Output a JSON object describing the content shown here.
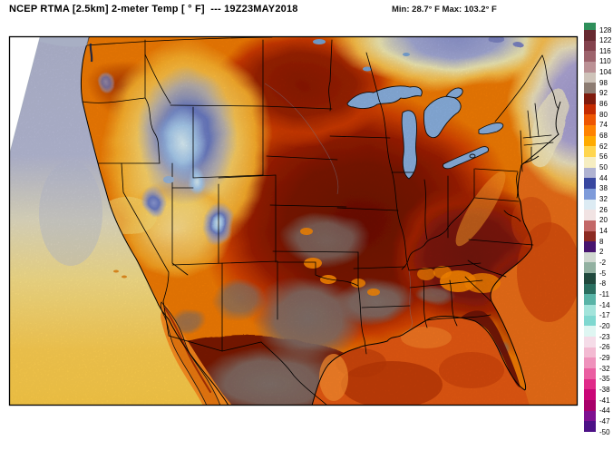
{
  "page": {
    "background": "#ffffff"
  },
  "header": {
    "title": "NCEP RTMA [2.5km] 2-meter Temp [ ° F]  --- 19Z23MAY2018",
    "stats": "Min: 28.7° F Max: 103.2° F"
  },
  "colorbar": {
    "unit": "°F",
    "cap_color": "#2e8f5a",
    "labels": [
      128,
      122,
      116,
      110,
      104,
      98,
      92,
      86,
      80,
      74,
      68,
      62,
      56,
      50,
      44,
      38,
      32,
      26,
      20,
      14,
      8,
      2,
      -2,
      -5,
      -8,
      -11,
      -14,
      -17,
      -20,
      -23,
      -26,
      -29,
      -32,
      -35,
      -38,
      -41,
      -44,
      -47,
      -50
    ],
    "segment_colors": [
      "#672a31",
      "#84424d",
      "#9d636c",
      "#bb9195",
      "#cec3b9",
      "#8d7c72",
      "#7f1b0d",
      "#c42b01",
      "#ee5602",
      "#ff8300",
      "#ffab00",
      "#ffd64f",
      "#f6eec2",
      "#b0b3d2",
      "#3847a0",
      "#7e9bda",
      "#dcebf3",
      "#f1e3e3",
      "#c36868",
      "#8c2a22",
      "#48156f",
      "#d0d8d0",
      "#92b1a1",
      "#20493d",
      "#2a6f60",
      "#58b4a7",
      "#a2e4db",
      "#7fd8d0",
      "#dff6f2",
      "#f5dce8",
      "#f3bad2",
      "#ef92bc",
      "#ea5ea1",
      "#e02a89",
      "#ca0677",
      "#a8006a",
      "#7e1090",
      "#4c1186"
    ]
  },
  "map": {
    "palette": {
      "base_warm": "#f57d04",
      "hot_core": "#7a1305",
      "very_hot_gray": "#837169",
      "cool_pacific": "#b6bad5",
      "cold_mountain_blue": "#5a6cbe",
      "lake_blue": "#8cb2e2",
      "gulf_orange": "#e85a12",
      "atlantic_cool": "#a19bd0"
    }
  }
}
